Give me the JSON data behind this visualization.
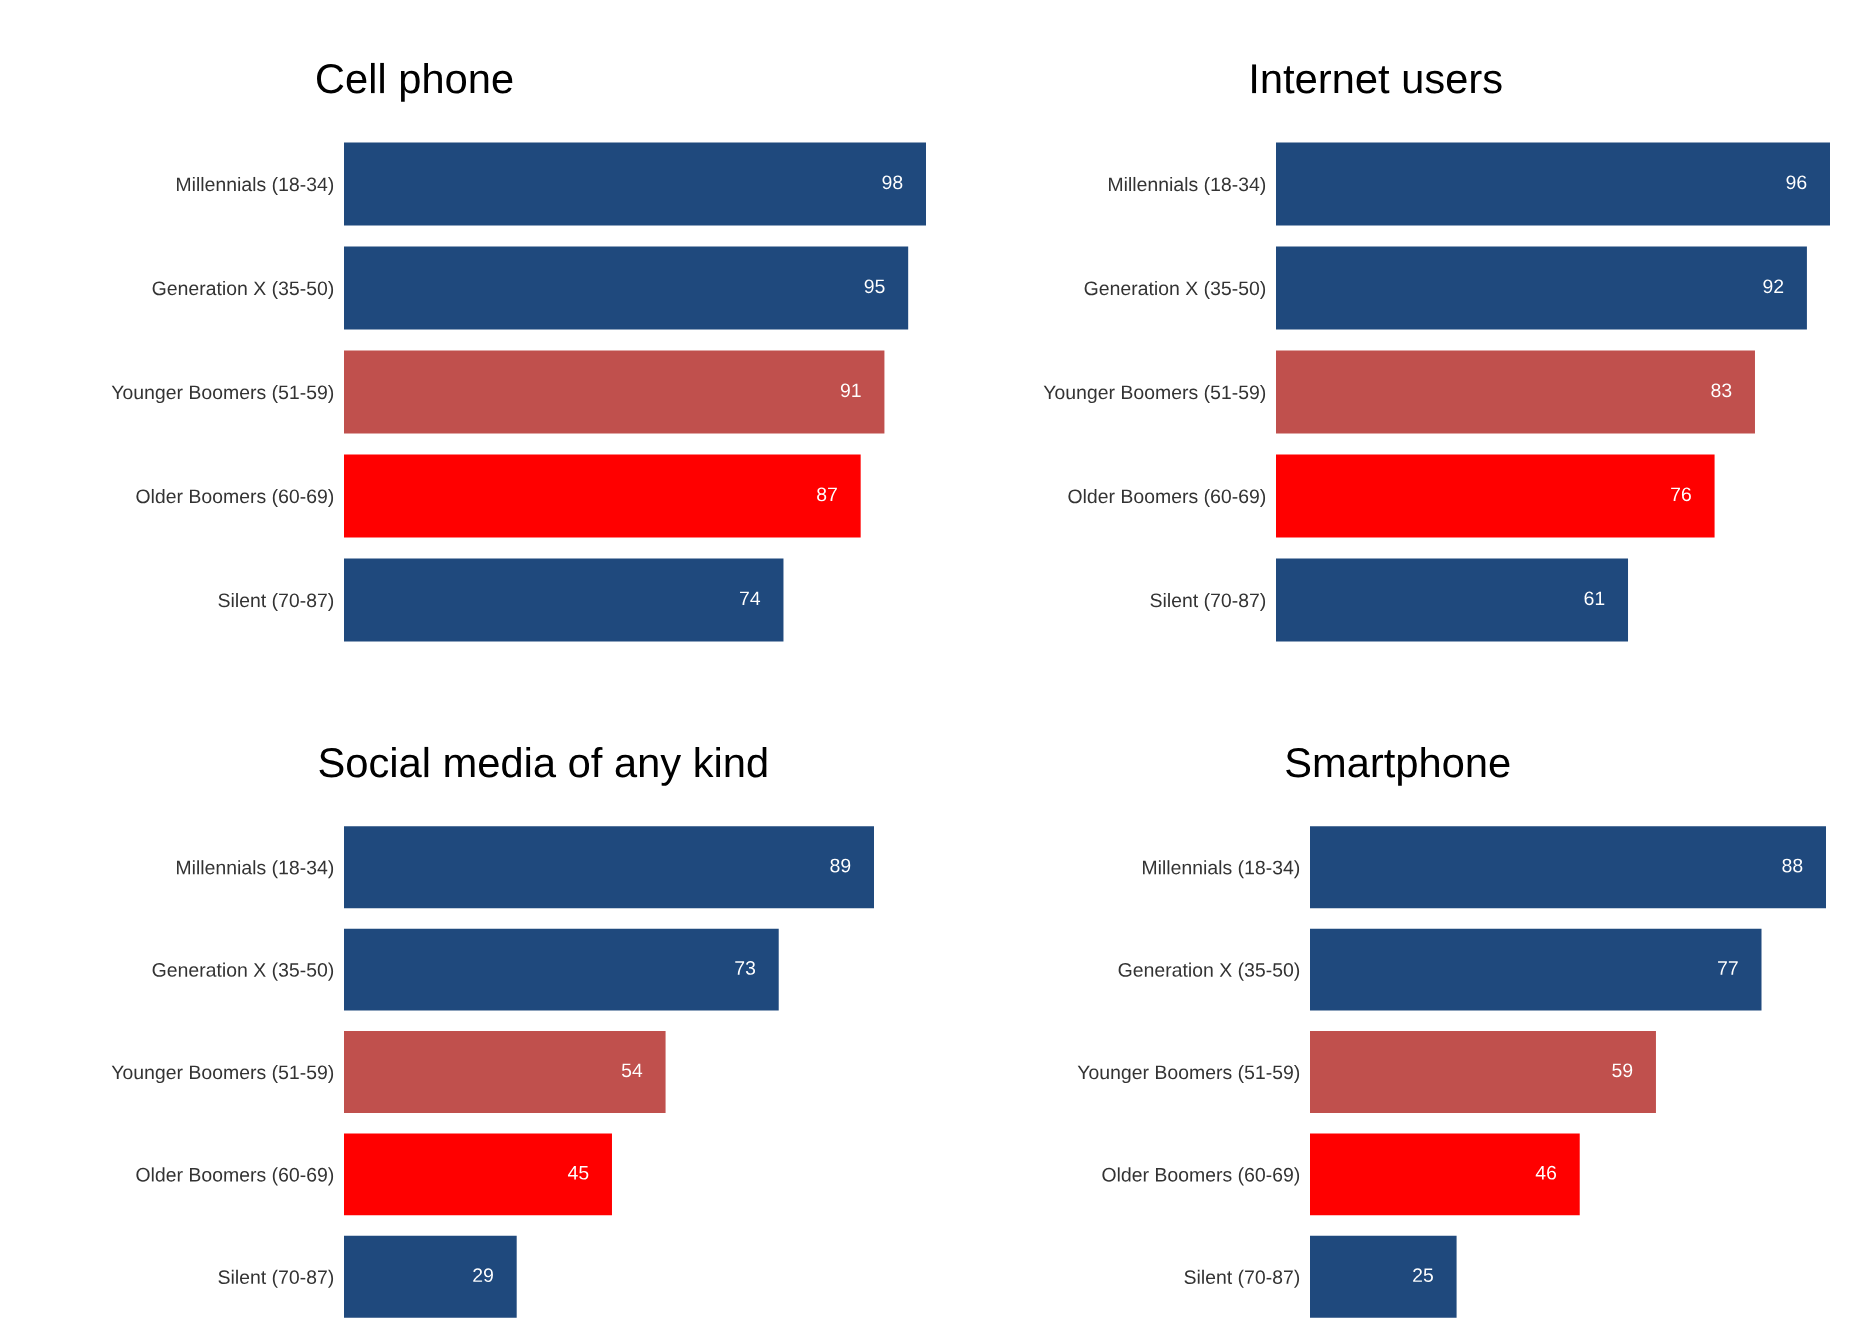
{
  "chart_data": [
    {
      "type": "bar",
      "orientation": "horizontal",
      "title": "Cell phone",
      "categories": [
        "Millennials (18-34)",
        "Generation X (35-50)",
        "Younger Boomers (51-59)",
        "Older Boomers (60-69)",
        "Silent (70-87)"
      ],
      "values": [
        98,
        95,
        91,
        87,
        74
      ],
      "colors": [
        "#1f497d",
        "#1f497d",
        "#c0504d",
        "#ff0000",
        "#1f497d"
      ],
      "data_labels": true
    },
    {
      "type": "bar",
      "orientation": "horizontal",
      "title": "Internet users",
      "categories": [
        "Millennials (18-34)",
        "Generation X (35-50)",
        "Younger Boomers (51-59)",
        "Older Boomers (60-69)",
        "Silent (70-87)"
      ],
      "values": [
        96,
        92,
        83,
        76,
        61
      ],
      "colors": [
        "#1f497d",
        "#1f497d",
        "#c0504d",
        "#ff0000",
        "#1f497d"
      ],
      "data_labels": true
    },
    {
      "type": "bar",
      "orientation": "horizontal",
      "title": "Social media of any kind",
      "categories": [
        "Millennials (18-34)",
        "Generation X (35-50)",
        "Younger Boomers (51-59)",
        "Older Boomers (60-69)",
        "Silent (70-87)"
      ],
      "values": [
        89,
        73,
        54,
        45,
        29
      ],
      "colors": [
        "#1f497d",
        "#1f497d",
        "#c0504d",
        "#ff0000",
        "#1f497d"
      ],
      "data_labels": true
    },
    {
      "type": "bar",
      "orientation": "horizontal",
      "title": "Smartphone",
      "categories": [
        "Millennials (18-34)",
        "Generation X (35-50)",
        "Younger Boomers (51-59)",
        "Older Boomers (60-69)",
        "Silent (70-87)"
      ],
      "values": [
        88,
        77,
        59,
        46,
        25
      ],
      "colors": [
        "#1f497d",
        "#1f497d",
        "#c0504d",
        "#ff0000",
        "#1f497d"
      ],
      "data_labels": true
    }
  ]
}
